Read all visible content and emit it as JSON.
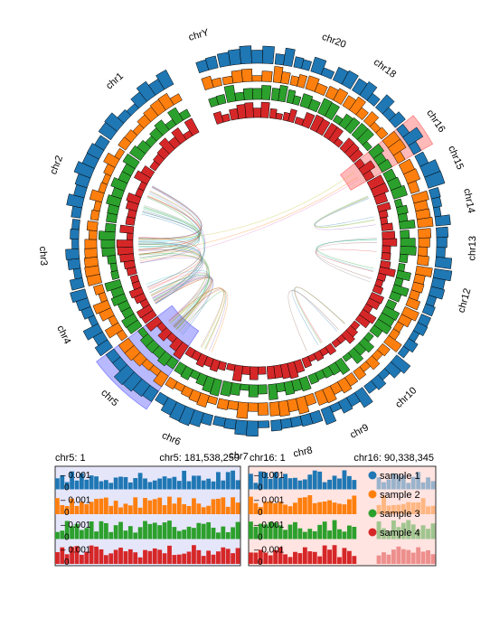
{
  "chart_data": [
    {
      "type": "circos",
      "chromosomes": [
        "chr1",
        "chr2",
        "chr3",
        "chr4",
        "chr5",
        "chr6",
        "chr7",
        "chr8",
        "chr9",
        "chr10",
        "chr11",
        "chr12",
        "chr13",
        "chr14",
        "chr15",
        "chr16",
        "chr17",
        "chr18",
        "chr19",
        "chr20",
        "chr21",
        "chr22",
        "chrX",
        "chrY"
      ],
      "labeled_chromosomes": [
        "chr1",
        "chr2",
        "chr3",
        "chr4",
        "chr5",
        "chr6",
        "chr7",
        "chr8",
        "chr9",
        "chr10",
        "chr12",
        "chr13",
        "chr14",
        "chr15",
        "chr16",
        "chr18",
        "chr20",
        "chrY"
      ],
      "chromosome_sizes_mb": [
        248,
        242,
        198,
        190,
        181,
        170,
        159,
        145,
        138,
        133,
        135,
        133,
        114,
        107,
        102,
        90,
        83,
        80,
        58,
        64,
        46,
        50,
        156,
        57
      ],
      "tracks": [
        "sample 1",
        "sample 2",
        "sample 3",
        "sample 4"
      ],
      "highlights": [
        {
          "chromosome": "chr5",
          "color": "#8080ff"
        },
        {
          "chromosome": "chr16",
          "color": "#ff8080"
        }
      ]
    },
    {
      "type": "bar",
      "region": {
        "chromosome": "chr5",
        "start_label": "chr5: 1",
        "end_label": "chr5: 181,538,259"
      },
      "background": "#e6e6fa",
      "ytick_labels": [
        "0.001",
        "0"
      ],
      "series_names": [
        "sample 1",
        "sample 2",
        "sample 3",
        "sample 4"
      ]
    },
    {
      "type": "bar",
      "region": {
        "chromosome": "chr16",
        "start_label": "chr16: 1",
        "end_label": "chr16: 90,338,345"
      },
      "background": "#ffe4e1",
      "ytick_labels": [
        "0.001",
        "0"
      ],
      "legend": [
        "sample 1",
        "sample 2",
        "sample 3",
        "sample 4"
      ],
      "legend_position": "top-right"
    }
  ],
  "colors": {
    "sample_1": "#1f77b4",
    "sample_2": "#ff7f0e",
    "sample_3": "#2ca02c",
    "sample_4": "#d62728",
    "highlight_chr5": "#8080ff",
    "highlight_chr16": "#ff8080"
  }
}
